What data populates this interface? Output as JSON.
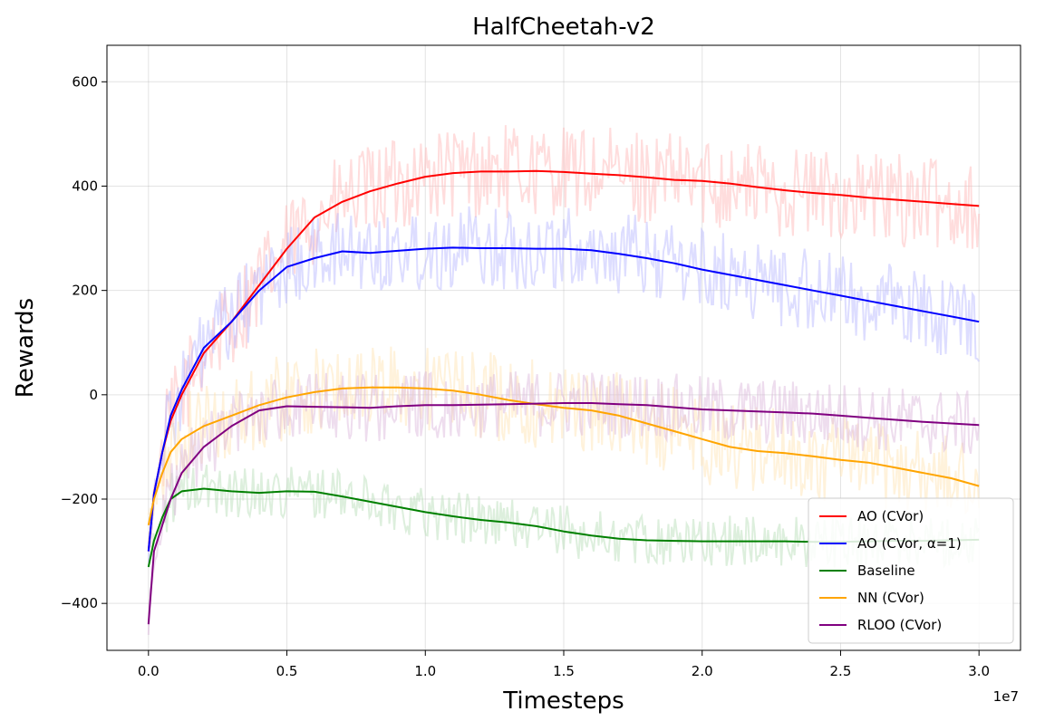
{
  "chart_data": {
    "type": "line",
    "title": "HalfCheetah-v2",
    "xlabel": "Timesteps",
    "ylabel": "Rewards",
    "x_multiplier_label": "1e7",
    "xlim": [
      -0.15,
      3.15
    ],
    "ylim": [
      -490,
      670
    ],
    "x_ticks": [
      0.0,
      0.5,
      1.0,
      1.5,
      2.0,
      2.5,
      3.0
    ],
    "x_tick_labels": [
      "0.0",
      "0.5",
      "1.0",
      "1.5",
      "2.0",
      "2.5",
      "3.0"
    ],
    "y_ticks": [
      -400,
      -200,
      0,
      200,
      400,
      600
    ],
    "y_tick_labels": [
      "−400",
      "−200",
      "0",
      "200",
      "400",
      "600"
    ],
    "grid": true,
    "legend_position": "lower-right",
    "series": [
      {
        "name": "AO (CVor)",
        "color": "#ff0000",
        "band_color": "#ffb3b3",
        "noise": 90,
        "x": [
          0,
          0.02,
          0.05,
          0.08,
          0.12,
          0.2,
          0.3,
          0.4,
          0.5,
          0.6,
          0.7,
          0.8,
          0.9,
          1.0,
          1.1,
          1.2,
          1.3,
          1.4,
          1.5,
          1.6,
          1.7,
          1.8,
          1.9,
          2.0,
          2.1,
          2.2,
          2.3,
          2.4,
          2.5,
          2.6,
          2.7,
          2.8,
          2.9,
          3.0
        ],
        "y": [
          -300,
          -190,
          -110,
          -50,
          0,
          80,
          140,
          210,
          280,
          340,
          370,
          390,
          405,
          418,
          425,
          428,
          428,
          429,
          427,
          424,
          421,
          417,
          412,
          410,
          405,
          398,
          392,
          387,
          383,
          378,
          374,
          370,
          366,
          362
        ]
      },
      {
        "name": "AO (CVor, α=1)",
        "color": "#0000ff",
        "band_color": "#b3b3ff",
        "noise": 80,
        "x": [
          0,
          0.02,
          0.05,
          0.08,
          0.12,
          0.2,
          0.3,
          0.4,
          0.5,
          0.6,
          0.7,
          0.8,
          0.9,
          1.0,
          1.1,
          1.2,
          1.3,
          1.4,
          1.5,
          1.6,
          1.7,
          1.8,
          1.9,
          2.0,
          2.1,
          2.2,
          2.3,
          2.4,
          2.5,
          2.6,
          2.7,
          2.8,
          2.9,
          3.0
        ],
        "y": [
          -300,
          -190,
          -110,
          -40,
          10,
          90,
          140,
          200,
          245,
          262,
          275,
          272,
          276,
          280,
          282,
          281,
          281,
          280,
          280,
          277,
          270,
          262,
          252,
          240,
          230,
          220,
          210,
          200,
          190,
          180,
          170,
          160,
          150,
          140
        ]
      },
      {
        "name": "Baseline",
        "color": "#008000",
        "band_color": "#b3dbb3",
        "noise": 50,
        "x": [
          0,
          0.02,
          0.05,
          0.08,
          0.12,
          0.2,
          0.3,
          0.4,
          0.5,
          0.6,
          0.7,
          0.8,
          0.9,
          1.0,
          1.1,
          1.2,
          1.3,
          1.4,
          1.5,
          1.6,
          1.7,
          1.8,
          1.9,
          2.0,
          2.1,
          2.2,
          2.3,
          2.4,
          2.5,
          2.6,
          2.7,
          2.8,
          2.9,
          3.0
        ],
        "y": [
          -330,
          -280,
          -235,
          -200,
          -185,
          -180,
          -185,
          -188,
          -185,
          -186,
          -195,
          -205,
          -215,
          -225,
          -233,
          -240,
          -245,
          -252,
          -262,
          -270,
          -276,
          -279,
          -280,
          -281,
          -281,
          -281,
          -281,
          -282,
          -282,
          -281,
          -280,
          -280,
          -279,
          -278
        ]
      },
      {
        "name": "NN (CVor)",
        "color": "#ffa500",
        "band_color": "#ffe2b0",
        "noise": 85,
        "x": [
          0,
          0.02,
          0.05,
          0.08,
          0.12,
          0.2,
          0.3,
          0.4,
          0.5,
          0.6,
          0.7,
          0.8,
          0.9,
          1.0,
          1.1,
          1.2,
          1.3,
          1.4,
          1.5,
          1.6,
          1.7,
          1.8,
          1.9,
          2.0,
          2.1,
          2.2,
          2.3,
          2.4,
          2.5,
          2.6,
          2.7,
          2.8,
          2.9,
          3.0
        ],
        "y": [
          -250,
          -200,
          -150,
          -110,
          -85,
          -60,
          -40,
          -20,
          -5,
          5,
          12,
          14,
          14,
          12,
          8,
          0,
          -10,
          -18,
          -25,
          -30,
          -40,
          -55,
          -70,
          -85,
          -100,
          -108,
          -112,
          -118,
          -125,
          -130,
          -140,
          -150,
          -160,
          -175
        ]
      },
      {
        "name": "RLOO (CVor)",
        "color": "#800080",
        "band_color": "#d9b3d9",
        "noise": 65,
        "x": [
          0,
          0.02,
          0.05,
          0.08,
          0.12,
          0.2,
          0.3,
          0.4,
          0.5,
          0.6,
          0.7,
          0.8,
          0.9,
          1.0,
          1.1,
          1.2,
          1.3,
          1.4,
          1.5,
          1.6,
          1.7,
          1.8,
          1.9,
          2.0,
          2.1,
          2.2,
          2.3,
          2.4,
          2.5,
          2.6,
          2.7,
          2.8,
          2.9,
          3.0
        ],
        "y": [
          -440,
          -300,
          -250,
          -200,
          -150,
          -100,
          -60,
          -30,
          -22,
          -23,
          -24,
          -25,
          -22,
          -20,
          -20,
          -19,
          -18,
          -17,
          -16,
          -16,
          -18,
          -20,
          -24,
          -28,
          -30,
          -32,
          -34,
          -36,
          -40,
          -44,
          -48,
          -52,
          -55,
          -58
        ]
      }
    ]
  }
}
